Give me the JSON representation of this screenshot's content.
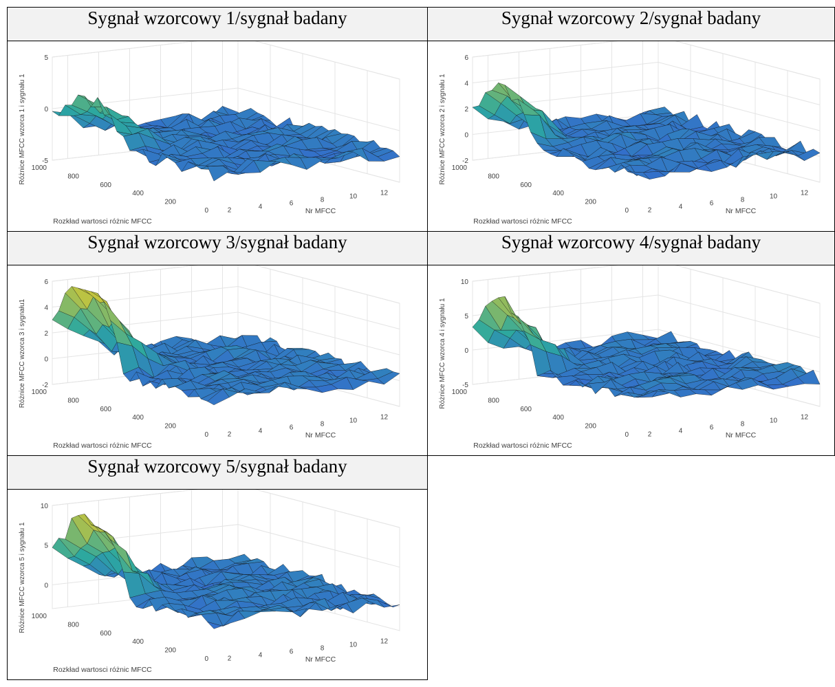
{
  "headers": [
    "Sygnał wzorcowy 1/sygnał badany",
    "Sygnał wzorcowy 2/sygnał badany",
    "Sygnał wzorcowy 3/sygnał badany",
    "Sygnał wzorcowy 4/sygnał badany",
    "Sygnał wzorcowy 5/sygnał badany"
  ],
  "colors": {
    "low": "#3b3df0",
    "mid": "#2ba8a0",
    "high": "#d8c830",
    "mesh": "#111111"
  },
  "chart_data": [
    {
      "type": "surface",
      "title": "Sygnał wzorcowy 1/sygnał badany",
      "zlabel": "Różnice MFCC wzorca 1 i sygnału 1",
      "xlabel": "Nr MFCC",
      "ylabel": "Rozkład wartosci różnic MFCC",
      "zticks": [
        "5",
        "0",
        "-5"
      ],
      "yticks": [
        "1000",
        "800",
        "600",
        "400",
        "200",
        "0"
      ],
      "xticks": [
        "2",
        "4",
        "6",
        "8",
        "10",
        "12"
      ],
      "zlim": [
        -5,
        5
      ],
      "ylim": [
        0,
        1000
      ],
      "xlim": [
        1,
        13
      ],
      "grid": true,
      "peak_band": {
        "start": 1000,
        "end": 560,
        "amp": 4
      }
    },
    {
      "type": "surface",
      "title": "Sygnał wzorcowy 2/sygnał badany",
      "zlabel": "Różnice MFCC wzorca 2 i sygnału 1",
      "xlabel": "Nr MFCC",
      "ylabel": "Rozkład wartosci różnic MFCC",
      "zticks": [
        "6",
        "4",
        "2",
        "0",
        "-2"
      ],
      "yticks": [
        "1000",
        "800",
        "600",
        "400",
        "200",
        "0"
      ],
      "xticks": [
        "2",
        "4",
        "6",
        "8",
        "10",
        "12"
      ],
      "zlim": [
        -2,
        6
      ],
      "ylim": [
        0,
        1000
      ],
      "xlim": [
        1,
        13
      ],
      "grid": true,
      "peak_band": {
        "start": 1000,
        "end": 640,
        "amp": 4
      }
    },
    {
      "type": "surface",
      "title": "Sygnał wzorcowy 3/sygnał badany",
      "zlabel": "Różnice MFCC wzorca 3 i sygnału1",
      "xlabel": "Nr MFCC",
      "ylabel": "Rozkład wartosci różnic MFCC",
      "zticks": [
        "6",
        "4",
        "2",
        "0",
        "-2"
      ],
      "yticks": [
        "1000",
        "800",
        "600",
        "400",
        "200",
        "0"
      ],
      "xticks": [
        "2",
        "4",
        "6",
        "8",
        "10",
        "12"
      ],
      "zlim": [
        -2,
        6
      ],
      "ylim": [
        0,
        1000
      ],
      "xlim": [
        1,
        13
      ],
      "grid": true,
      "peak_band": {
        "start": 1000,
        "end": 600,
        "amp": 6.5
      }
    },
    {
      "type": "surface",
      "title": "Sygnał wzorcowy 4/sygnał badany",
      "zlabel": "Różnice MFCC wzorca 4 i sygnału 1",
      "xlabel": "Nr MFCC",
      "ylabel": "Rozkład wartosci różnic MFCC",
      "zticks": [
        "10",
        "5",
        "0",
        "-5"
      ],
      "yticks": [
        "1000",
        "800",
        "600",
        "400",
        "200",
        "0"
      ],
      "xticks": [
        "2",
        "4",
        "6",
        "8",
        "10",
        "12"
      ],
      "zlim": [
        -5,
        10
      ],
      "ylim": [
        0,
        1000
      ],
      "xlim": [
        1,
        13
      ],
      "grid": true,
      "peak_band": {
        "start": 1000,
        "end": 620,
        "amp": 9
      }
    },
    {
      "type": "surface",
      "title": "Sygnał wzorcowy 5/sygnał badany",
      "zlabel": "Różnice MFCC wzorca 5 i sygnału 1",
      "xlabel": "Nr MFCC",
      "ylabel": "Rozkład wartosci różnic MFCC",
      "zticks": [
        "10",
        "5",
        "0"
      ],
      "yticks": [
        "1000",
        "800",
        "600",
        "400",
        "200",
        "0"
      ],
      "xticks": [
        "2",
        "4",
        "6",
        "8",
        "10",
        "12"
      ],
      "zlim": [
        -3,
        10
      ],
      "ylim": [
        0,
        1000
      ],
      "xlim": [
        1,
        13
      ],
      "grid": true,
      "peak_band": {
        "start": 1000,
        "end": 560,
        "amp": 9
      }
    }
  ]
}
